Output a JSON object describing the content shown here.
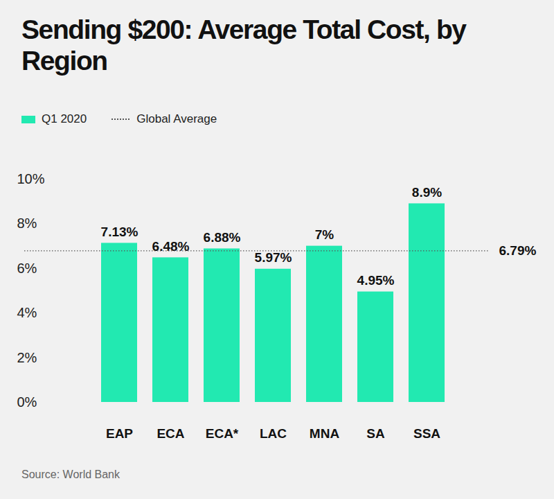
{
  "chart_data": {
    "type": "bar",
    "title": "Sending $200: Average Total Cost, by Region",
    "categories": [
      "EAP",
      "ECA",
      "ECA*",
      "LAC",
      "MNA",
      "SA",
      "SSA"
    ],
    "series": [
      {
        "name": "Q1 2020",
        "color": "#22e9b1",
        "values": [
          7.13,
          6.48,
          6.88,
          5.97,
          7,
          4.95,
          8.9
        ],
        "value_labels": [
          "7.13%",
          "6.48%",
          "6.88%",
          "5.97%",
          "7%",
          "4.95%",
          "8.9%"
        ]
      }
    ],
    "reference_line": {
      "name": "Global Average",
      "value": 6.79,
      "label": "6.79%",
      "line_style": "dotted"
    },
    "ylim": [
      0,
      10
    ],
    "yticks": [
      {
        "value": 0,
        "label": "0%"
      },
      {
        "value": 2,
        "label": "2%"
      },
      {
        "value": 4,
        "label": "4%"
      },
      {
        "value": 6,
        "label": "6%"
      },
      {
        "value": 8,
        "label": "8%"
      },
      {
        "value": 10,
        "label": "10%"
      }
    ],
    "grid": false,
    "legend": "top-left",
    "data_labels": true,
    "source": "Source: World Bank"
  }
}
